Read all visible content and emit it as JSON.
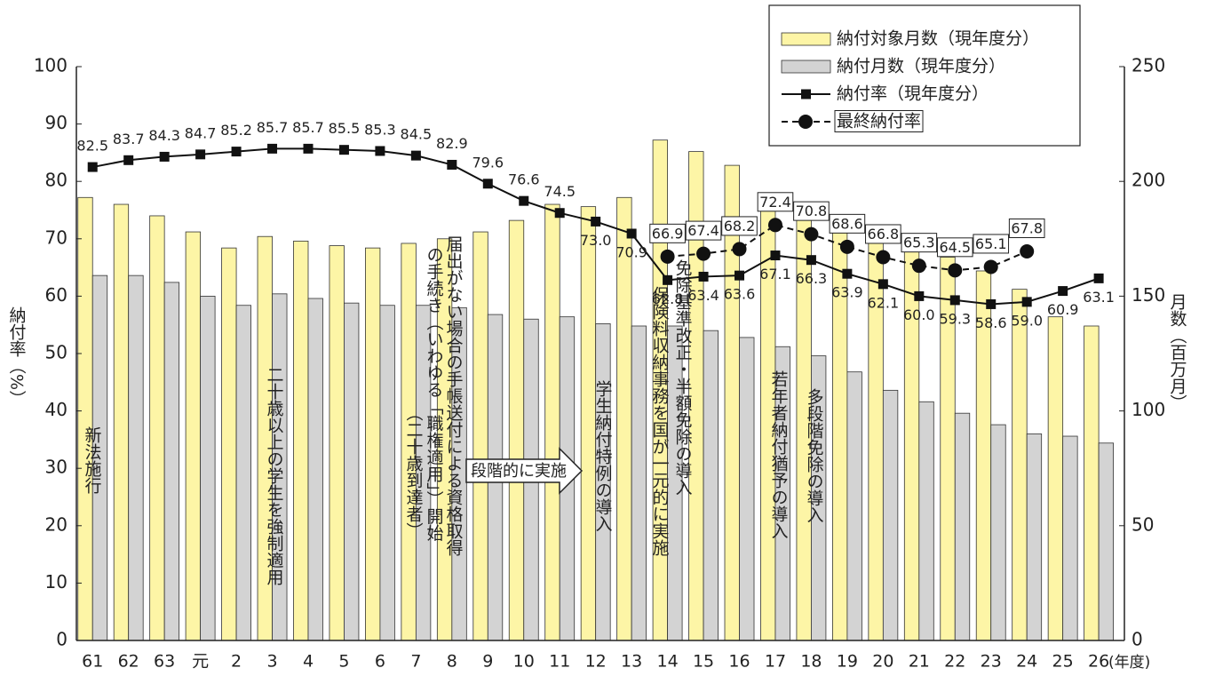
{
  "chart_data": {
    "type": "bar",
    "categories": [
      "61",
      "62",
      "63",
      "元",
      "2",
      "3",
      "4",
      "5",
      "6",
      "7",
      "8",
      "9",
      "10",
      "11",
      "12",
      "13",
      "14",
      "15",
      "16",
      "17",
      "18",
      "19",
      "20",
      "21",
      "22",
      "23",
      "24",
      "25",
      "26"
    ],
    "x_label": "(年度)",
    "y_label": "納付率（%）",
    "y2_label": "月数（百万月）",
    "ylim": [
      0,
      100
    ],
    "yticks": [
      0,
      10,
      20,
      30,
      40,
      50,
      60,
      70,
      80,
      90,
      100
    ],
    "y2lim": [
      0,
      250
    ],
    "y2ticks": [
      0,
      50,
      100,
      150,
      200,
      250
    ],
    "legend": "upper right",
    "series": [
      {
        "name": "納付対象月数（現年度分）",
        "type": "bar",
        "axis": "y2",
        "color": "#fdf5a6",
        "values": [
          193,
          190,
          185,
          178,
          171,
          176,
          174,
          172,
          171,
          173,
          175,
          178,
          183,
          190,
          189,
          193,
          218,
          213,
          207,
          191,
          188,
          182,
          176,
          174,
          167,
          161,
          153,
          141,
          137
        ]
      },
      {
        "name": "納付月数（現年度分）",
        "type": "bar",
        "axis": "y2",
        "color": "#d3d3d3",
        "values": [
          159,
          159,
          156,
          150,
          146,
          151,
          149,
          147,
          146,
          146,
          145,
          142,
          140,
          141,
          138,
          137,
          137,
          135,
          132,
          128,
          124,
          117,
          109,
          104,
          99,
          94,
          90,
          89,
          86
        ]
      },
      {
        "name": "納付率（現年度分）",
        "type": "line",
        "color": "#111",
        "values": [
          82.5,
          83.7,
          84.3,
          84.7,
          85.2,
          85.7,
          85.7,
          85.5,
          85.3,
          84.5,
          82.9,
          79.6,
          76.6,
          74.5,
          73.0,
          70.9,
          62.8,
          63.4,
          63.6,
          67.1,
          66.3,
          63.9,
          62.1,
          60.0,
          59.3,
          58.6,
          59.0,
          60.9,
          63.1
        ],
        "value_labels": [
          "82.5",
          "83.7",
          "84.3",
          "84.7",
          "85.2",
          "85.7",
          "85.7",
          "85.5",
          "85.3",
          "84.5",
          "82.9",
          "79.6",
          "76.6",
          "74.5",
          "73.0",
          "70.9",
          "62.8",
          "63.4",
          "63.6",
          "67.1",
          "66.3",
          "63.9",
          "62.1",
          "60.0",
          "59.3",
          "58.6",
          "59.0",
          "60.9",
          "63.1"
        ]
      },
      {
        "name": "最終納付率",
        "type": "dashed-line",
        "color": "#111",
        "values": [
          null,
          null,
          null,
          null,
          null,
          null,
          null,
          null,
          null,
          null,
          null,
          null,
          null,
          null,
          null,
          null,
          66.9,
          67.4,
          68.2,
          72.4,
          70.8,
          68.6,
          66.8,
          65.3,
          64.5,
          65.1,
          67.8,
          null,
          null
        ],
        "value_labels": [
          null,
          null,
          null,
          null,
          null,
          null,
          null,
          null,
          null,
          null,
          null,
          null,
          null,
          null,
          null,
          null,
          "66.9",
          "67.4",
          "68.2",
          "72.4",
          "70.8",
          "68.6",
          "66.8",
          "65.3",
          "64.5",
          "65.1",
          "67.8",
          null,
          null
        ]
      }
    ],
    "annotations": [
      {
        "text": "新法施行"
      },
      {
        "text": "二十歳以上の学生を強制適用"
      },
      {
        "text": "届出がない場合の手帳送付による資格取得"
      },
      {
        "text": "の手続き（いわゆる「職権適用」）開始"
      },
      {
        "text": "（二十歳到達者）"
      },
      {
        "text": "段階的に実施"
      },
      {
        "text": "学生納付特例の導入"
      },
      {
        "text": "免除基準改正・半額免除の導入"
      },
      {
        "text": "保険料収納事務を国が一元的に実施"
      },
      {
        "text": "若年者納付猶予の導入"
      },
      {
        "text": "多段階免除の導入"
      }
    ]
  }
}
